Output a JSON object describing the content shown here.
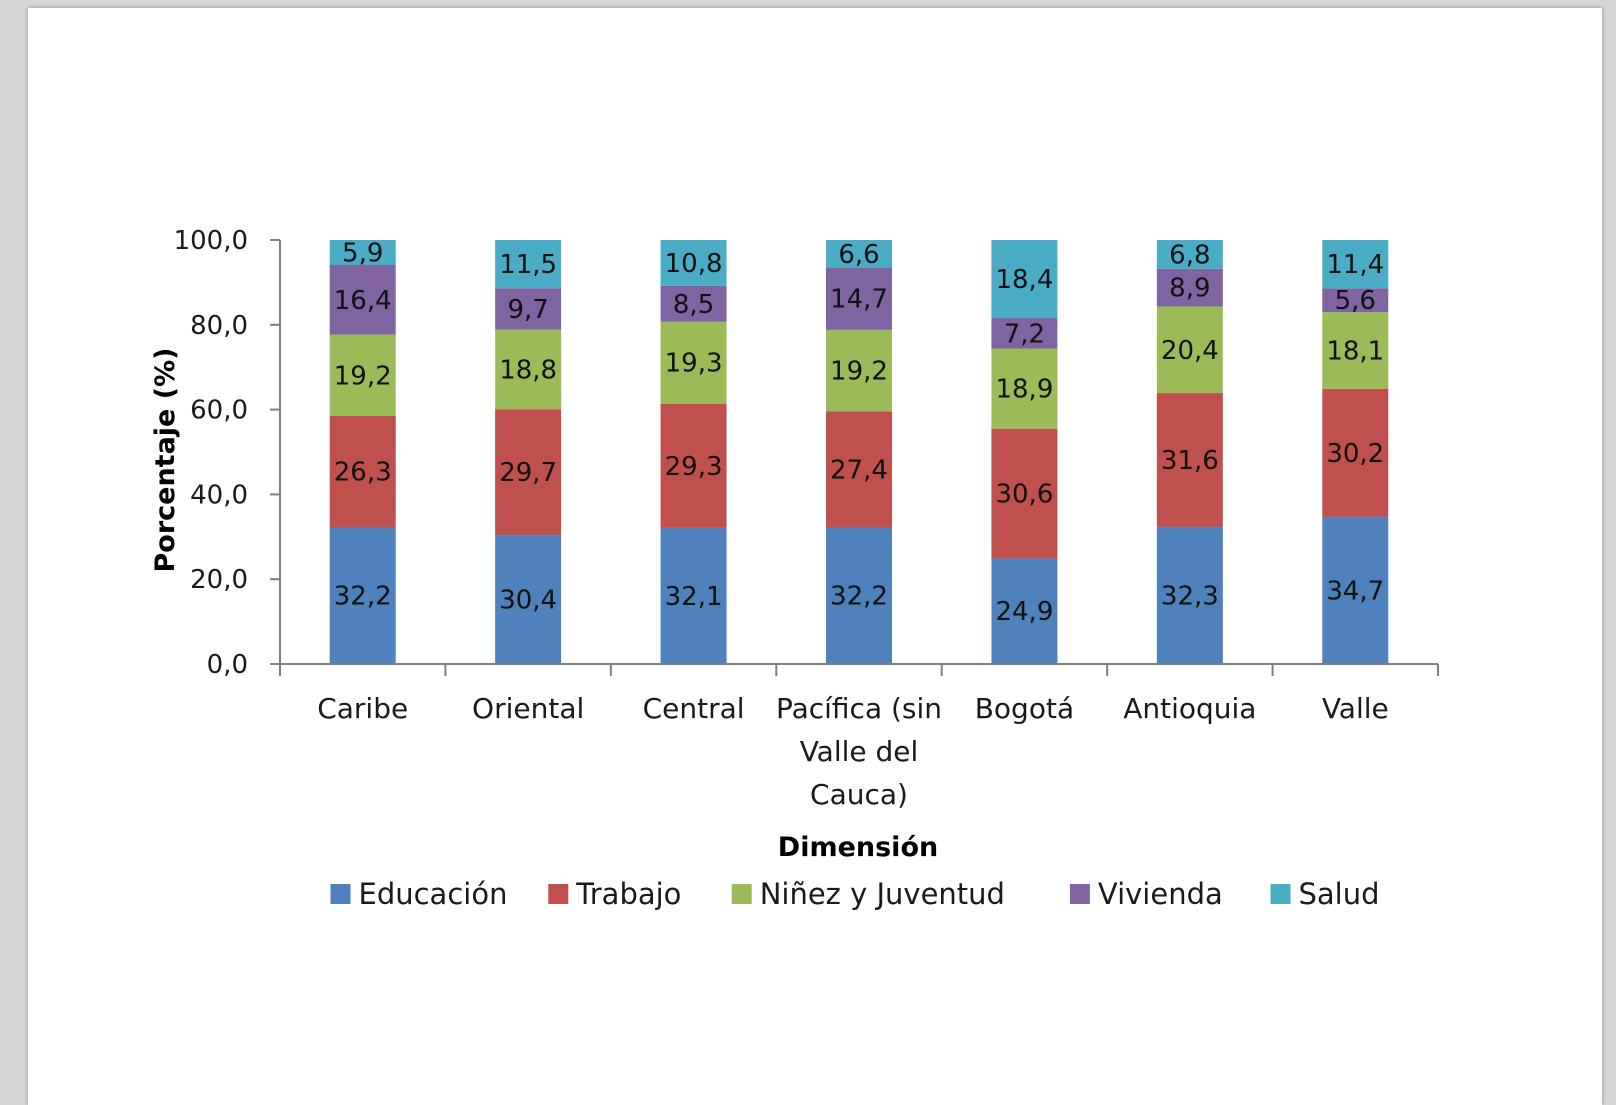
{
  "chart_data": {
    "type": "bar",
    "stacked": true,
    "title": "",
    "xlabel": "Dimensión",
    "ylabel": "Porcentaje (%)",
    "ylim": [
      0,
      100
    ],
    "yticks": [
      "0,0",
      "20,0",
      "40,0",
      "60,0",
      "80,0",
      "100,0"
    ],
    "grid": false,
    "legend_position": "bottom",
    "categories": [
      [
        "Caribe"
      ],
      [
        "Oriental"
      ],
      [
        "Central"
      ],
      [
        "Pacífica (sin",
        "Valle del",
        "Cauca)"
      ],
      [
        "Bogotá"
      ],
      [
        "Antioquia"
      ],
      [
        "Valle"
      ]
    ],
    "series": [
      {
        "name": "Educación",
        "color": "#4f81bd",
        "values": [
          32.2,
          30.4,
          32.1,
          32.2,
          24.9,
          32.3,
          34.7
        ],
        "labels": [
          "32,2",
          "30,4",
          "32,1",
          "32,2",
          "24,9",
          "32,3",
          "34,7"
        ]
      },
      {
        "name": "Trabajo",
        "color": "#c0504d",
        "values": [
          26.3,
          29.7,
          29.3,
          27.4,
          30.6,
          31.6,
          30.2
        ],
        "labels": [
          "26,3",
          "29,7",
          "29,3",
          "27,4",
          "30,6",
          "31,6",
          "30,2"
        ]
      },
      {
        "name": "Niñez y Juventud",
        "color": "#9bbb59",
        "values": [
          19.2,
          18.8,
          19.3,
          19.2,
          18.9,
          20.4,
          18.1
        ],
        "labels": [
          "19,2",
          "18,8",
          "19,3",
          "19,2",
          "18,9",
          "20,4",
          "18,1"
        ]
      },
      {
        "name": "Vivienda",
        "color": "#8064a2",
        "values": [
          16.4,
          9.7,
          8.5,
          14.7,
          7.2,
          8.9,
          5.6
        ],
        "labels": [
          "16,4",
          "9,7",
          "8,5",
          "14,7",
          "7,2",
          "8,9",
          "5,6"
        ]
      },
      {
        "name": "Salud",
        "color": "#4bacc6",
        "values": [
          5.9,
          11.5,
          10.8,
          6.6,
          18.4,
          6.8,
          11.4
        ],
        "labels": [
          "5,9",
          "11,5",
          "10,8",
          "6,6",
          "18,4",
          "6,8",
          "11,4"
        ]
      }
    ]
  }
}
